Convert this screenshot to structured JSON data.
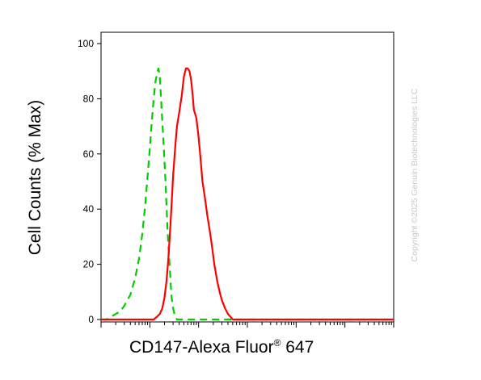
{
  "chart_data": {
    "type": "line",
    "xlabel": "CD147-Alexa Fluor",
    "xlabel_sup": "®",
    "xlabel_suffix": " 647",
    "ylabel": "Cell Counts (% Max)",
    "xscale": "log",
    "xlim": [
      1,
      1000000
    ],
    "ylim": [
      0,
      100
    ],
    "yticks": [
      0,
      20,
      40,
      60,
      80,
      100
    ],
    "xtick_labels": [],
    "grid": false,
    "legend": "none",
    "series": [
      {
        "color": "#00cc00",
        "line_style": "dashed",
        "x": [
          1,
          1.3,
          1.6,
          2,
          2.5,
          3,
          4,
          5,
          6,
          7,
          8,
          9,
          10,
          11,
          12,
          13,
          14,
          15,
          16,
          17,
          18,
          19,
          20,
          21,
          22,
          23,
          24,
          25,
          26,
          27,
          28,
          30,
          32,
          34,
          36,
          38,
          40,
          42,
          45,
          50,
          60,
          100,
          1000,
          10000,
          100000,
          1000000
        ],
        "values": [
          0,
          0,
          1,
          2,
          3,
          5,
          9,
          15,
          22,
          31,
          41,
          52,
          62,
          72,
          80,
          86,
          89,
          91,
          88,
          80,
          72,
          65,
          57,
          50,
          41,
          33,
          27,
          22,
          17,
          12,
          8,
          4,
          2,
          1,
          0,
          0,
          0,
          0,
          0,
          0,
          0,
          0,
          0,
          0,
          0,
          0
        ]
      },
      {
        "color": "#ff0000",
        "line_style": "solid",
        "x": [
          1,
          10,
          12,
          14,
          16,
          18,
          20,
          22,
          24,
          26,
          28,
          30,
          33,
          36,
          40,
          45,
          50,
          55,
          60,
          65,
          70,
          75,
          80,
          90,
          100,
          110,
          120,
          135,
          150,
          170,
          190,
          210,
          240,
          270,
          300,
          350,
          400,
          450,
          500,
          600,
          700,
          800,
          1000,
          1200,
          1500,
          2000,
          5000,
          10000,
          100000,
          1000000
        ],
        "values": [
          0,
          0,
          0,
          1,
          2,
          4,
          8,
          14,
          22,
          32,
          42,
          52,
          62,
          70,
          75,
          81,
          88,
          91,
          91,
          90,
          87,
          82,
          76,
          73,
          66,
          58,
          50,
          44,
          38,
          32,
          26,
          20,
          14,
          10,
          7,
          4,
          2,
          1,
          0,
          0,
          0,
          0,
          0,
          0,
          0,
          0,
          0,
          0,
          0,
          0
        ]
      }
    ]
  },
  "watermark": "Copyright ©2025 Genuin Biotechnologies LLC"
}
